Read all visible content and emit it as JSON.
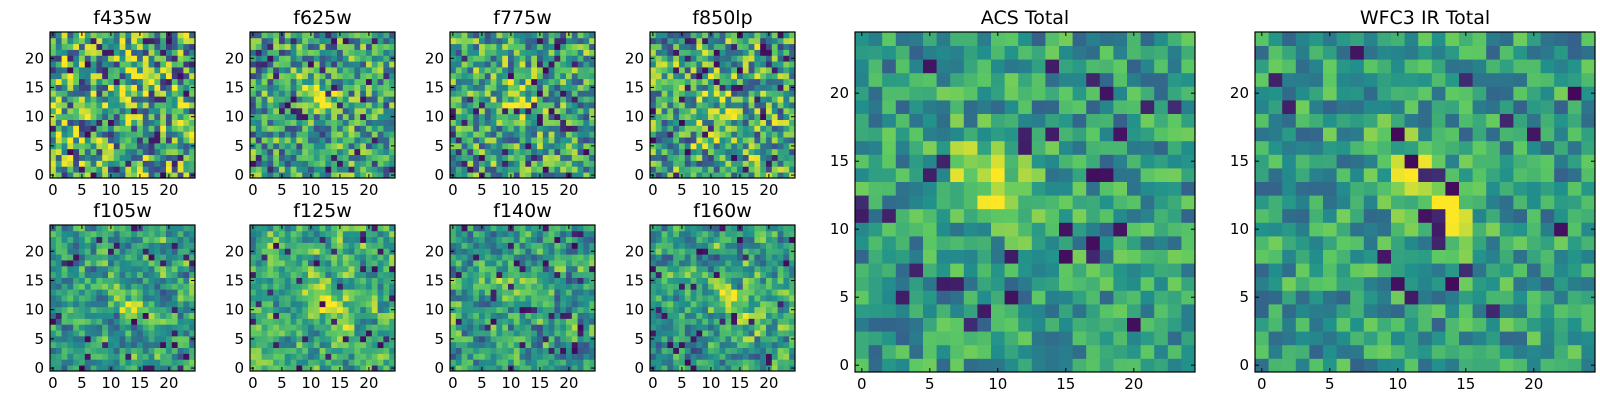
{
  "figure": {
    "colormap": "viridis",
    "colormap_stops": [
      "#440154",
      "#3b528b",
      "#21918c",
      "#5ec962",
      "#fde725"
    ],
    "background": "#ffffff"
  },
  "chart_data": [
    {
      "type": "heatmap",
      "title": "f435w",
      "grid_size": 25,
      "xlim": [
        0,
        24
      ],
      "ylim": [
        0,
        24
      ],
      "xticks": [
        "0",
        "5",
        "10",
        "15",
        "20"
      ],
      "yticks": [
        "0",
        "5",
        "10",
        "15",
        "20"
      ],
      "source_center": [
        12,
        12
      ],
      "source_strength": 0.1,
      "noise_level": 0.55,
      "dark_pixel_fraction": 0.06,
      "base_level": 0.6,
      "block": 1
    },
    {
      "type": "heatmap",
      "title": "f625w",
      "grid_size": 25,
      "xlim": [
        0,
        24
      ],
      "ylim": [
        0,
        24
      ],
      "xticks": [
        "0",
        "5",
        "10",
        "15",
        "20"
      ],
      "yticks": [
        "0",
        "5",
        "10",
        "15",
        "20"
      ],
      "source_center": [
        11,
        14
      ],
      "source_strength": 0.35,
      "noise_level": 0.45,
      "dark_pixel_fraction": 0.06,
      "base_level": 0.55,
      "block": 1
    },
    {
      "type": "heatmap",
      "title": "f775w",
      "grid_size": 25,
      "xlim": [
        0,
        24
      ],
      "ylim": [
        0,
        24
      ],
      "xticks": [
        "0",
        "5",
        "10",
        "15",
        "20"
      ],
      "yticks": [
        "0",
        "5",
        "10",
        "15",
        "20"
      ],
      "source_center": [
        11,
        13
      ],
      "source_strength": 0.3,
      "noise_level": 0.45,
      "dark_pixel_fraction": 0.06,
      "base_level": 0.58,
      "block": 1
    },
    {
      "type": "heatmap",
      "title": "f850lp",
      "grid_size": 25,
      "xlim": [
        0,
        24
      ],
      "ylim": [
        0,
        24
      ],
      "xticks": [
        "0",
        "5",
        "10",
        "15",
        "20"
      ],
      "yticks": [
        "0",
        "5",
        "10",
        "15",
        "20"
      ],
      "source_center": [
        12,
        12
      ],
      "source_strength": 0.15,
      "noise_level": 0.5,
      "dark_pixel_fraction": 0.07,
      "base_level": 0.6,
      "block": 1
    },
    {
      "type": "heatmap",
      "title": "f105w",
      "grid_size": 25,
      "xlim": [
        0,
        24
      ],
      "ylim": [
        0,
        24
      ],
      "xticks": [
        "0",
        "5",
        "10",
        "15",
        "20"
      ],
      "yticks": [
        "0",
        "5",
        "10",
        "15",
        "20"
      ],
      "source_center": [
        12,
        12
      ],
      "source_strength": 0.2,
      "noise_level": 0.45,
      "dark_pixel_fraction": 0.05,
      "base_level": 0.55,
      "block": 2
    },
    {
      "type": "heatmap",
      "title": "f125w",
      "grid_size": 25,
      "xlim": [
        0,
        24
      ],
      "ylim": [
        0,
        24
      ],
      "xticks": [
        "0",
        "5",
        "10",
        "15",
        "20"
      ],
      "yticks": [
        "0",
        "5",
        "10",
        "15",
        "20"
      ],
      "source_center": [
        13,
        11
      ],
      "source_strength": 0.35,
      "noise_level": 0.4,
      "dark_pixel_fraction": 0.04,
      "base_level": 0.62,
      "block": 2
    },
    {
      "type": "heatmap",
      "title": "f140w",
      "grid_size": 25,
      "xlim": [
        0,
        24
      ],
      "ylim": [
        0,
        24
      ],
      "xticks": [
        "0",
        "5",
        "10",
        "15",
        "20"
      ],
      "yticks": [
        "0",
        "5",
        "10",
        "15",
        "20"
      ],
      "source_center": [
        9,
        15
      ],
      "source_strength": 0.3,
      "noise_level": 0.45,
      "dark_pixel_fraction": 0.05,
      "base_level": 0.55,
      "block": 2
    },
    {
      "type": "heatmap",
      "title": "f160w",
      "grid_size": 25,
      "xlim": [
        0,
        24
      ],
      "ylim": [
        0,
        24
      ],
      "xticks": [
        "0",
        "5",
        "10",
        "15",
        "20"
      ],
      "yticks": [
        "0",
        "5",
        "10",
        "15",
        "20"
      ],
      "source_center": [
        14,
        11
      ],
      "source_strength": 0.3,
      "noise_level": 0.45,
      "dark_pixel_fraction": 0.05,
      "base_level": 0.55,
      "block": 2
    },
    {
      "type": "heatmap",
      "title": "ACS Total",
      "grid_size": 25,
      "xlim": [
        0,
        24
      ],
      "ylim": [
        0,
        24
      ],
      "xticks": [
        "0",
        "5",
        "10",
        "15",
        "20"
      ],
      "yticks": [
        "0",
        "5",
        "10",
        "15",
        "20"
      ],
      "source_center": [
        10,
        13
      ],
      "source_strength": 0.45,
      "noise_level": 0.3,
      "dark_pixel_fraction": 0.04,
      "base_level": 0.55,
      "block": 1
    },
    {
      "type": "heatmap",
      "title": "WFC3 IR Total",
      "grid_size": 25,
      "xlim": [
        0,
        24
      ],
      "ylim": [
        0,
        24
      ],
      "xticks": [
        "0",
        "5",
        "10",
        "15",
        "20"
      ],
      "yticks": [
        "0",
        "5",
        "10",
        "15",
        "20"
      ],
      "source_center": [
        12,
        13
      ],
      "source_strength": 0.45,
      "noise_level": 0.3,
      "dark_pixel_fraction": 0.03,
      "base_level": 0.55,
      "block": 1
    }
  ]
}
